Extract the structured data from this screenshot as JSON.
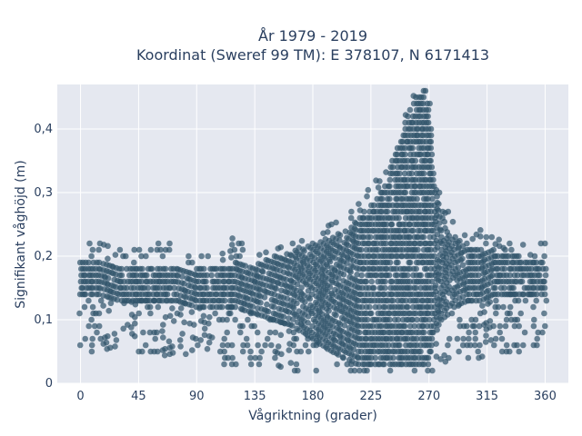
{
  "chart_data": {
    "type": "scatter",
    "title_line1": "År 1979 - 2019",
    "title_line2": "Koordinat (Sweref 99 TM): E 378107, N 6171413",
    "xlabel": "Vågriktning (grader)",
    "ylabel": "Signifikant våghöjd (m)",
    "xlim": [
      -18,
      378
    ],
    "ylim": [
      0,
      0.47
    ],
    "xticks": [
      {
        "value": 0,
        "label": "0"
      },
      {
        "value": 45,
        "label": "45"
      },
      {
        "value": 90,
        "label": "90"
      },
      {
        "value": 135,
        "label": "135"
      },
      {
        "value": 180,
        "label": "180"
      },
      {
        "value": 225,
        "label": "225"
      },
      {
        "value": 270,
        "label": "270"
      },
      {
        "value": 315,
        "label": "315"
      },
      {
        "value": 360,
        "label": "360"
      }
    ],
    "yticks": [
      {
        "value": 0,
        "label": "0"
      },
      {
        "value": 0.1,
        "label": "0,1"
      },
      {
        "value": 0.2,
        "label": "0,2"
      },
      {
        "value": 0.3,
        "label": "0,3"
      },
      {
        "value": 0.4,
        "label": "0,4"
      }
    ],
    "grid": true,
    "marker_color": "#2f5369",
    "background_color": "#e5e8f0",
    "envelope": {
      "x": [
        0,
        15,
        30,
        45,
        60,
        75,
        90,
        105,
        120,
        135,
        150,
        165,
        180,
        195,
        205,
        215,
        225,
        235,
        240,
        245,
        250,
        255,
        260,
        265,
        268,
        272,
        275,
        280,
        285,
        290,
        300,
        310,
        320,
        330,
        340,
        350,
        360
      ],
      "core_low": [
        0.14,
        0.14,
        0.13,
        0.13,
        0.13,
        0.13,
        0.12,
        0.12,
        0.12,
        0.11,
        0.1,
        0.09,
        0.07,
        0.05,
        0.04,
        0.03,
        0.03,
        0.03,
        0.03,
        0.03,
        0.03,
        0.03,
        0.03,
        0.03,
        0.03,
        0.05,
        0.08,
        0.1,
        0.11,
        0.12,
        0.13,
        0.13,
        0.14,
        0.14,
        0.14,
        0.14,
        0.14
      ],
      "core_high": [
        0.19,
        0.19,
        0.18,
        0.18,
        0.18,
        0.18,
        0.18,
        0.18,
        0.19,
        0.19,
        0.2,
        0.21,
        0.22,
        0.23,
        0.24,
        0.26,
        0.28,
        0.31,
        0.34,
        0.37,
        0.4,
        0.43,
        0.45,
        0.46,
        0.46,
        0.4,
        0.32,
        0.27,
        0.24,
        0.23,
        0.22,
        0.21,
        0.21,
        0.2,
        0.2,
        0.19,
        0.19
      ],
      "outer_low": [
        0.05,
        0.05,
        0.06,
        0.04,
        0.04,
        0.05,
        0.04,
        0.03,
        0.03,
        0.03,
        0.03,
        0.02,
        0.02,
        0.02,
        0.02,
        0.02,
        0.02,
        0.02,
        0.02,
        0.02,
        0.02,
        0.02,
        0.02,
        0.02,
        0.02,
        0.02,
        0.02,
        0.03,
        0.04,
        0.04,
        0.04,
        0.04,
        0.05,
        0.05,
        0.05,
        0.05,
        0.05
      ],
      "outer_high": [
        0.22,
        0.22,
        0.21,
        0.22,
        0.22,
        0.22,
        0.2,
        0.2,
        0.24,
        0.2,
        0.21,
        0.22,
        0.24,
        0.25,
        0.27,
        0.29,
        0.32,
        0.34,
        0.36,
        0.39,
        0.42,
        0.45,
        0.46,
        0.46,
        0.46,
        0.42,
        0.34,
        0.3,
        0.27,
        0.26,
        0.25,
        0.24,
        0.23,
        0.23,
        0.22,
        0.22,
        0.22
      ]
    }
  }
}
